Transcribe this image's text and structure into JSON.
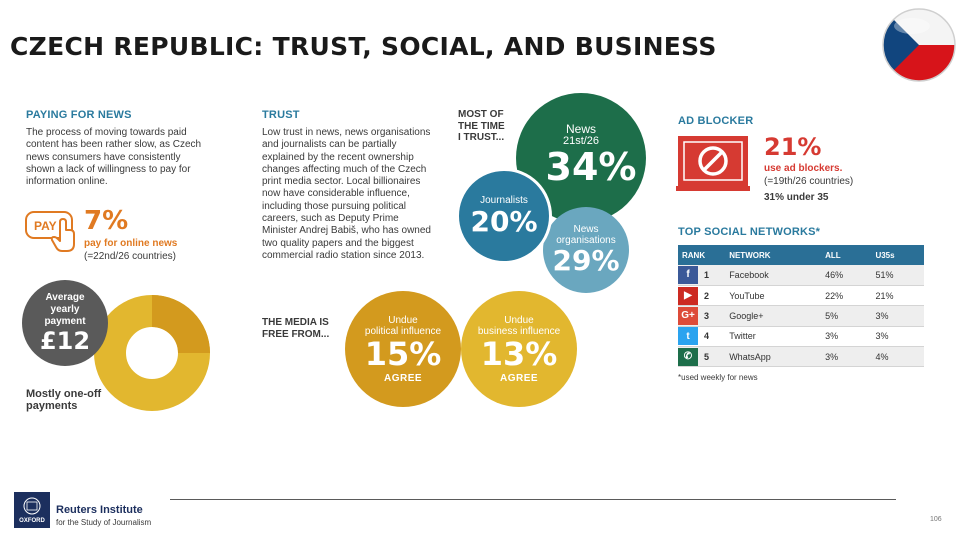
{
  "page": {
    "title": "CZECH REPUBLIC: TRUST, SOCIAL, AND BUSINESS",
    "page_number": "106"
  },
  "paying": {
    "heading": "PAYING FOR NEWS",
    "body": [
      "The process of moving towards paid",
      "content has been rather slow, as Czech",
      "news consumers have consistently",
      "shown a lack of willingness to pay for",
      "information online."
    ],
    "pay_icon_label": "PAY",
    "pct": "7%",
    "pct_label": "pay for online news",
    "pct_rank": "(=22nd/26 countries)",
    "avg_label": [
      "Average",
      "yearly",
      "payment"
    ],
    "avg_value": "£12",
    "donut_label": [
      "Mostly one-off",
      "payments"
    ],
    "donut_share_primary": 0.75,
    "colors": {
      "donut_main": "#e2b72f",
      "donut_secondary": "#d39a1e"
    }
  },
  "trust": {
    "heading": "TRUST",
    "body": [
      "Low trust in news, news organisations",
      "and journalists can be partially",
      "explained by the recent ownership",
      "changes affecting much of the Czech",
      "print media sector. Local billionaires",
      "now have considerable influence,",
      "including those pursuing political",
      "careers, such as Deputy Prime",
      "Minister Andrej Babiš, who has owned",
      "two quality papers and the biggest",
      "commercial radio station since 2013."
    ],
    "most_label": [
      "MOST OF",
      "THE TIME",
      "I TRUST..."
    ],
    "news": {
      "label": "News",
      "rank": "21st/26",
      "value": "34%"
    },
    "journalists": {
      "label": "Journalists",
      "value": "20%"
    },
    "orgs": {
      "label": [
        "News",
        "organisations"
      ],
      "value": "29%"
    },
    "media_free_label": [
      "THE MEDIA IS",
      "FREE FROM..."
    ],
    "political": {
      "label": [
        "Undue",
        "political influence"
      ],
      "value": "15%",
      "agree": "AGREE"
    },
    "business": {
      "label": [
        "Undue",
        "business influence"
      ],
      "value": "13%",
      "agree": "AGREE"
    },
    "colors": {
      "news": "#1d6e4a",
      "journalists": "#2a7a9e",
      "orgs": "#6aa7bf",
      "political": "#d39a1e",
      "business": "#e2b72f"
    }
  },
  "adblock": {
    "heading": "AD BLOCKER",
    "pct": "21%",
    "label": "use ad blockers.",
    "rank": "(=19th/26 countries)",
    "under35": "31% under 35",
    "colors": {
      "accent": "#d63a32"
    }
  },
  "social": {
    "heading": "TOP SOCIAL NETWORKS*",
    "columns": [
      "RANK",
      "NETWORK",
      "ALL",
      "U35s"
    ],
    "rows": [
      {
        "icon": "facebook-icon",
        "glyph": "f",
        "color": "#3b5998",
        "rank": "1",
        "network": "Facebook",
        "all": "46%",
        "u35": "51%"
      },
      {
        "icon": "youtube-icon",
        "glyph": "▶",
        "color": "#cc2a22",
        "rank": "2",
        "network": "YouTube",
        "all": "22%",
        "u35": "21%"
      },
      {
        "icon": "googleplus-icon",
        "glyph": "G+",
        "color": "#dd4b39",
        "rank": "3",
        "network": "Google+",
        "all": "5%",
        "u35": "3%"
      },
      {
        "icon": "twitter-icon",
        "glyph": "t",
        "color": "#2aa3ef",
        "rank": "4",
        "network": "Twitter",
        "all": "3%",
        "u35": "3%"
      },
      {
        "icon": "whatsapp-icon",
        "glyph": "✆",
        "color": "#1d6e4a",
        "rank": "5",
        "network": "WhatsApp",
        "all": "3%",
        "u35": "4%"
      }
    ],
    "footnote": "*used weekly for news"
  },
  "footer": {
    "org": "Reuters Institute",
    "org_sub": "for the Study of Journalism",
    "crest_text": "OXFORD"
  }
}
